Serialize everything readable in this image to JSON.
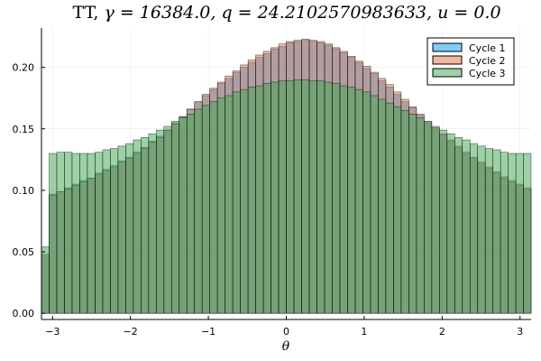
{
  "chart_data": {
    "type": "bar",
    "title": "TT, γ = 16384.0, q = 24.2102570983633, u = 0.0",
    "title_parts": {
      "prefix": "TT, ",
      "gamma": "γ = 16384.0, q = 24.2102570983633, u = 0.0"
    },
    "xlabel": "θ",
    "ylabel": "",
    "xlim": [
      -3.1416,
      3.1416
    ],
    "ylim": [
      -0.005,
      0.232
    ],
    "xticks": [
      -3,
      -2,
      -1,
      0,
      1,
      2,
      3
    ],
    "xtick_labels": [
      "−3",
      "−2",
      "−1",
      "0",
      "1",
      "2",
      "3"
    ],
    "yticks": [
      0.0,
      0.05,
      0.1,
      0.15,
      0.2
    ],
    "ytick_labels": [
      "0.00",
      "0.05",
      "0.10",
      "0.15",
      "0.20"
    ],
    "grid": true,
    "legend_position": "top-right",
    "bin_edges_start": -3.1416,
    "bin_width": 0.0982,
    "series": [
      {
        "name": "Cycle 1",
        "color": "#009af9",
        "values": [
          0.047,
          0.097,
          0.099,
          0.102,
          0.105,
          0.108,
          0.11,
          0.114,
          0.117,
          0.12,
          0.124,
          0.127,
          0.131,
          0.135,
          0.14,
          0.144,
          0.149,
          0.155,
          0.16,
          0.166,
          0.172,
          0.177,
          0.182,
          0.187,
          0.191,
          0.196,
          0.2,
          0.204,
          0.208,
          0.211,
          0.215,
          0.217,
          0.22,
          0.221,
          0.222,
          0.221,
          0.22,
          0.218,
          0.215,
          0.212,
          0.208,
          0.204,
          0.199,
          0.195,
          0.189,
          0.184,
          0.178,
          0.172,
          0.167,
          0.161,
          0.155,
          0.15,
          0.145,
          0.14,
          0.135,
          0.13,
          0.126,
          0.122,
          0.118,
          0.114,
          0.11,
          0.107,
          0.104,
          0.101
        ]
      },
      {
        "name": "Cycle 2",
        "color": "#e26f46",
        "values": [
          0.048,
          0.096,
          0.099,
          0.101,
          0.104,
          0.107,
          0.11,
          0.113,
          0.116,
          0.119,
          0.123,
          0.126,
          0.13,
          0.134,
          0.139,
          0.143,
          0.149,
          0.154,
          0.16,
          0.166,
          0.172,
          0.178,
          0.183,
          0.188,
          0.193,
          0.197,
          0.202,
          0.206,
          0.21,
          0.213,
          0.216,
          0.219,
          0.221,
          0.222,
          0.223,
          0.222,
          0.221,
          0.219,
          0.216,
          0.213,
          0.209,
          0.205,
          0.201,
          0.196,
          0.191,
          0.186,
          0.18,
          0.174,
          0.168,
          0.162,
          0.156,
          0.151,
          0.146,
          0.141,
          0.136,
          0.131,
          0.127,
          0.123,
          0.119,
          0.115,
          0.111,
          0.108,
          0.105,
          0.102
        ]
      },
      {
        "name": "Cycle 3",
        "color": "#3da44d",
        "values": [
          0.054,
          0.13,
          0.131,
          0.131,
          0.13,
          0.13,
          0.13,
          0.131,
          0.133,
          0.134,
          0.136,
          0.138,
          0.141,
          0.143,
          0.146,
          0.149,
          0.152,
          0.156,
          0.159,
          0.162,
          0.166,
          0.169,
          0.172,
          0.175,
          0.177,
          0.18,
          0.182,
          0.184,
          0.185,
          0.187,
          0.188,
          0.189,
          0.189,
          0.19,
          0.19,
          0.189,
          0.189,
          0.188,
          0.187,
          0.185,
          0.184,
          0.182,
          0.18,
          0.177,
          0.174,
          0.171,
          0.168,
          0.165,
          0.162,
          0.159,
          0.156,
          0.152,
          0.149,
          0.146,
          0.143,
          0.141,
          0.138,
          0.136,
          0.134,
          0.133,
          0.131,
          0.13,
          0.13,
          0.13
        ]
      }
    ]
  }
}
